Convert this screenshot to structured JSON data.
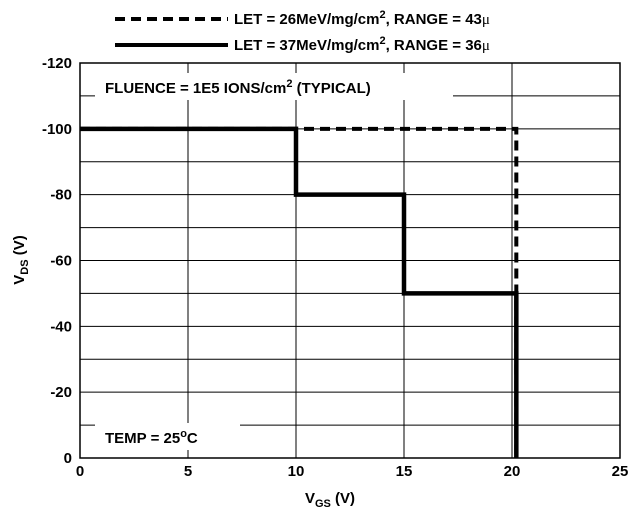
{
  "chart_data": {
    "type": "line",
    "xlabel": {
      "main": "V",
      "sub": "GS",
      "unit": " (V)"
    },
    "ylabel": {
      "main": "V",
      "sub": "DS",
      "unit": " (V)"
    },
    "xlim": [
      0,
      25
    ],
    "ylim": [
      0,
      -120
    ],
    "x_ticks": [
      0,
      5,
      10,
      15,
      20,
      25
    ],
    "y_ticks": [
      0,
      -20,
      -40,
      -60,
      -80,
      -100,
      -120
    ],
    "x_tick_labels": [
      "0",
      "5",
      "10",
      "15",
      "20",
      "25"
    ],
    "y_tick_labels": [
      "0",
      "-20",
      "-40",
      "-60",
      "-80",
      "-100",
      "-120"
    ],
    "grid": true,
    "legend_placement": "top",
    "series": [
      {
        "style": "dashed",
        "legend": {
          "pre": "LET = 26MeV/mg/cm",
          "sup": "2",
          "post": ", RANGE = 43",
          "mu": "μ"
        },
        "x": [
          0,
          10,
          20.2,
          20.2
        ],
        "y": [
          -100,
          -100,
          -100,
          0
        ]
      },
      {
        "style": "solid",
        "legend": {
          "pre": "LET = 37MeV/mg/cm",
          "sup": "2",
          "post": ", RANGE = 36",
          "mu": "μ"
        },
        "x": [
          0,
          10,
          10,
          15,
          15,
          20.2,
          20.2
        ],
        "y": [
          -100,
          -100,
          -80,
          -80,
          -50,
          -50,
          0
        ]
      }
    ],
    "annotations": [
      {
        "id": "fluence",
        "pre": "FLUENCE = 1E5 IONS/cm",
        "sup": "2",
        "post": " (TYPICAL)"
      },
      {
        "id": "temp",
        "pre": "TEMP = 25",
        "sup": "o",
        "post": "C"
      }
    ],
    "colors": {
      "line": "#000000",
      "grid": "#000000",
      "background": "#ffffff"
    }
  }
}
